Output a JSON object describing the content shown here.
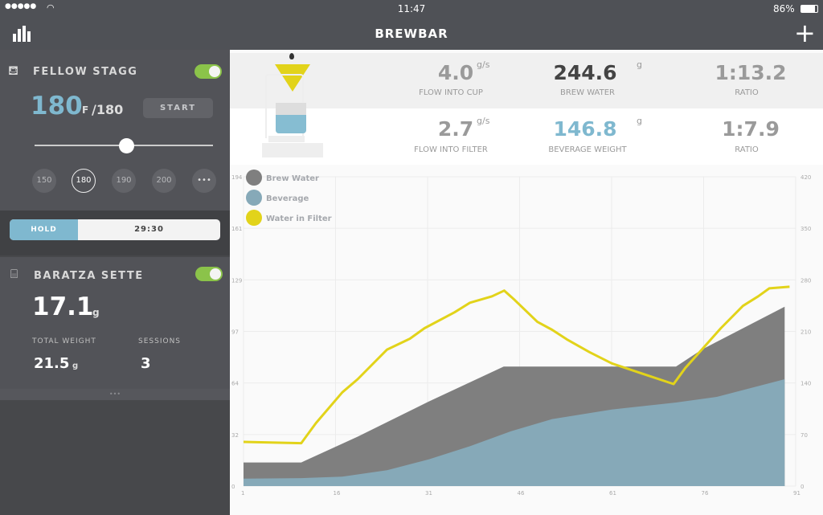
{
  "status": {
    "signal": "●●●●●",
    "time": "11:47",
    "battery": "86%"
  },
  "header": {
    "title": "BREWBAR",
    "stats_icon": "bar-chart-icon",
    "add_icon": "plus-icon"
  },
  "kettle": {
    "name": "FELLOW STAGG",
    "enabled": true,
    "temp": "180",
    "unit": "F",
    "target": "/180",
    "start_label": "START",
    "slider_value": 180,
    "presets": [
      "150",
      "180",
      "190",
      "200",
      "•••"
    ],
    "selected_preset": "180",
    "hold_label": "HOLD",
    "hold_time": "29:30"
  },
  "grinder": {
    "name": "BARATZA SETTE",
    "enabled": true,
    "dose": "17.1",
    "dose_unit": "g",
    "total_weight_label": "TOTAL WEIGHT",
    "total_weight": "21.5",
    "total_weight_unit": "g",
    "sessions_label": "SESSIONS",
    "sessions": "3",
    "more": "•••"
  },
  "stats": {
    "row1": [
      {
        "value": "4.0",
        "unit": "g/s",
        "label": "FLOW INTO CUP"
      },
      {
        "value": "244.6",
        "unit": "g",
        "label": "BREW WATER"
      },
      {
        "value": "1:13.2",
        "unit": "",
        "label": "RATIO"
      }
    ],
    "row2": [
      {
        "value": "2.7",
        "unit": "g/s",
        "label": "FLOW INTO FILTER"
      },
      {
        "value": "146.8",
        "unit": "g",
        "label": "BEVERAGE WEIGHT"
      },
      {
        "value": "1:7.9",
        "unit": "",
        "label": "RATIO"
      }
    ]
  },
  "colors": {
    "brew_water": "#7f7f7f",
    "beverage": "#86a9b8",
    "water_in_filter": "#e2d31a",
    "accent": "#7fb8cf",
    "toggle": "#8bc34a"
  },
  "chart_data": {
    "type": "area",
    "xlim": [
      1,
      91
    ],
    "ylim": [
      0,
      194
    ],
    "ylim_right": [
      0,
      420
    ],
    "x_ticks": [
      "1",
      "16",
      "31",
      "46",
      "61",
      "76",
      "91"
    ],
    "y_ticks_left": [
      "0",
      "32",
      "64",
      "97",
      "129",
      "161",
      "194"
    ],
    "y_ticks_right": [
      "0",
      "70",
      "140",
      "210",
      "280",
      "350",
      "420"
    ],
    "legend_position": "top-left",
    "grid": true,
    "series": [
      {
        "name": "Brew Water",
        "type": "area",
        "points": [
          [
            1,
            14.8
          ],
          [
            10.4,
            14.8
          ],
          [
            19.6,
            31
          ],
          [
            31.2,
            53
          ],
          [
            43.4,
            75
          ],
          [
            71.5,
            75
          ],
          [
            75.7,
            85.6
          ],
          [
            89.2,
            112.5
          ]
        ]
      },
      {
        "name": "Beverage",
        "type": "area",
        "points": [
          [
            1,
            4.7
          ],
          [
            10.4,
            5
          ],
          [
            17.1,
            5.9
          ],
          [
            24.4,
            10
          ],
          [
            31.2,
            16.8
          ],
          [
            37.9,
            25
          ],
          [
            44.6,
            34.4
          ],
          [
            51.3,
            42
          ],
          [
            61,
            48
          ],
          [
            71.5,
            52.4
          ],
          [
            78.2,
            56
          ],
          [
            89.2,
            67
          ]
        ]
      },
      {
        "name": "Water in Filter",
        "type": "line",
        "points": [
          [
            1,
            27.7
          ],
          [
            10.4,
            26.9
          ],
          [
            12.8,
            39.5
          ],
          [
            17.1,
            58.8
          ],
          [
            19.6,
            67
          ],
          [
            24.4,
            85.6
          ],
          [
            28.1,
            92.4
          ],
          [
            30.5,
            99
          ],
          [
            35.4,
            109
          ],
          [
            37.9,
            115
          ],
          [
            41.5,
            119
          ],
          [
            43.5,
            122.6
          ],
          [
            45.2,
            116.7
          ],
          [
            48.9,
            103
          ],
          [
            51.3,
            98
          ],
          [
            53.7,
            92
          ],
          [
            57.4,
            84
          ],
          [
            61,
            77
          ],
          [
            66,
            70.5
          ],
          [
            71.1,
            64
          ],
          [
            73,
            74
          ],
          [
            75.7,
            85.6
          ],
          [
            78.8,
            99
          ],
          [
            82.4,
            113
          ],
          [
            84.9,
            119
          ],
          [
            86.7,
            124
          ],
          [
            90,
            125
          ]
        ]
      }
    ]
  }
}
